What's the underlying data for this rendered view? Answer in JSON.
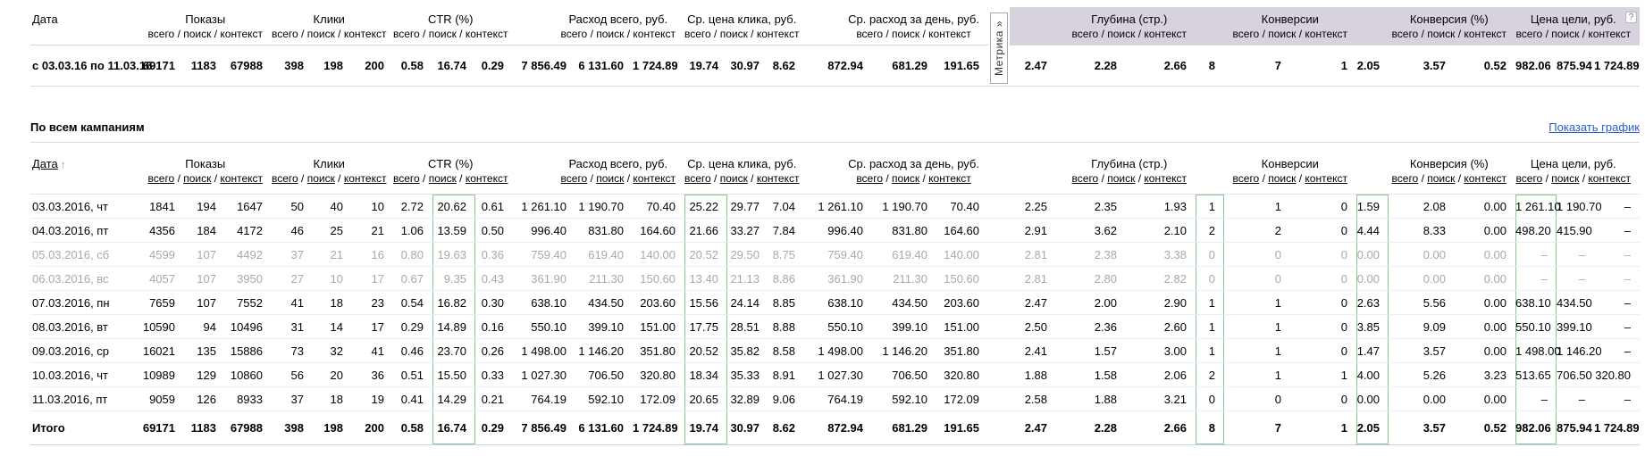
{
  "colors": {
    "metrika_band": "#d8d2de",
    "highlight_green": "#8bc78f",
    "link_blue": "#2a5ccc",
    "muted_text": "#a9a9a9"
  },
  "columns": {
    "date": "Дата",
    "groups": [
      "Показы",
      "Клики",
      "CTR (%)",
      "Расход всего, руб.",
      "Ср. цена клика, руб.",
      "Ср. расход за день, руб.",
      "Глубина (стр.)",
      "Конверсии",
      "Конверсия (%)",
      "Цена цели, руб."
    ],
    "sub_parts": [
      "всего",
      "поиск",
      "контекст"
    ],
    "sub_separator": " / "
  },
  "summary": {
    "metrika_tab": "Метрика",
    "metrika_chevron": "»",
    "help": "?",
    "row": {
      "label": "с 03.03.16 по 11.03.16",
      "values": [
        "69171",
        "1183",
        "67988",
        "398",
        "198",
        "200",
        "0.58",
        "16.74",
        "0.29",
        "7 856.49",
        "6 131.60",
        "1 724.89",
        "19.74",
        "30.97",
        "8.62",
        "872.94",
        "681.29",
        "191.65",
        "2.47",
        "2.28",
        "2.66",
        "8",
        "7",
        "1",
        "2.05",
        "3.57",
        "0.52",
        "982.06",
        "875.94",
        "1 724.89"
      ]
    }
  },
  "campaigns": {
    "title": "По всем кампаниям",
    "show_chart": "Показать график",
    "sort_arrow": "↑",
    "highlighted_columns": [
      7,
      12,
      21,
      24,
      27
    ],
    "rows": [
      {
        "date": "03.03.2016, чт",
        "muted": false,
        "values": [
          "1841",
          "194",
          "1647",
          "50",
          "40",
          "10",
          "2.72",
          "20.62",
          "0.61",
          "1 261.10",
          "1 190.70",
          "70.40",
          "25.22",
          "29.77",
          "7.04",
          "1 261.10",
          "1 190.70",
          "70.40",
          "2.25",
          "2.35",
          "1.93",
          "1",
          "1",
          "0",
          "1.59",
          "2.08",
          "0.00",
          "1 261.10",
          "1 190.70",
          "–"
        ]
      },
      {
        "date": "04.03.2016, пт",
        "muted": false,
        "values": [
          "4356",
          "184",
          "4172",
          "46",
          "25",
          "21",
          "1.06",
          "13.59",
          "0.50",
          "996.40",
          "831.80",
          "164.60",
          "21.66",
          "33.27",
          "7.84",
          "996.40",
          "831.80",
          "164.60",
          "2.91",
          "3.62",
          "2.10",
          "2",
          "2",
          "0",
          "4.44",
          "8.33",
          "0.00",
          "498.20",
          "415.90",
          "–"
        ]
      },
      {
        "date": "05.03.2016, сб",
        "muted": true,
        "values": [
          "4599",
          "107",
          "4492",
          "37",
          "21",
          "16",
          "0.80",
          "19.63",
          "0.36",
          "759.40",
          "619.40",
          "140.00",
          "20.52",
          "29.50",
          "8.75",
          "759.40",
          "619.40",
          "140.00",
          "2.81",
          "2.38",
          "3.38",
          "0",
          "0",
          "0",
          "0.00",
          "0.00",
          "0.00",
          "–",
          "–",
          "–"
        ]
      },
      {
        "date": "06.03.2016, вс",
        "muted": true,
        "values": [
          "4057",
          "107",
          "3950",
          "27",
          "10",
          "17",
          "0.67",
          "9.35",
          "0.43",
          "361.90",
          "211.30",
          "150.60",
          "13.40",
          "21.13",
          "8.86",
          "361.90",
          "211.30",
          "150.60",
          "2.81",
          "2.80",
          "2.82",
          "0",
          "0",
          "0",
          "0.00",
          "0.00",
          "0.00",
          "–",
          "–",
          "–"
        ]
      },
      {
        "date": "07.03.2016, пн",
        "muted": false,
        "values": [
          "7659",
          "107",
          "7552",
          "41",
          "18",
          "23",
          "0.54",
          "16.82",
          "0.30",
          "638.10",
          "434.50",
          "203.60",
          "15.56",
          "24.14",
          "8.85",
          "638.10",
          "434.50",
          "203.60",
          "2.47",
          "2.00",
          "2.90",
          "1",
          "1",
          "0",
          "2.63",
          "5.56",
          "0.00",
          "638.10",
          "434.50",
          "–"
        ]
      },
      {
        "date": "08.03.2016, вт",
        "muted": false,
        "values": [
          "10590",
          "94",
          "10496",
          "31",
          "14",
          "17",
          "0.29",
          "14.89",
          "0.16",
          "550.10",
          "399.10",
          "151.00",
          "17.75",
          "28.51",
          "8.88",
          "550.10",
          "399.10",
          "151.00",
          "2.50",
          "2.36",
          "2.60",
          "1",
          "1",
          "0",
          "3.85",
          "9.09",
          "0.00",
          "550.10",
          "399.10",
          "–"
        ]
      },
      {
        "date": "09.03.2016, ср",
        "muted": false,
        "values": [
          "16021",
          "135",
          "15886",
          "73",
          "32",
          "41",
          "0.46",
          "23.70",
          "0.26",
          "1 498.00",
          "1 146.20",
          "351.80",
          "20.52",
          "35.82",
          "8.58",
          "1 498.00",
          "1 146.20",
          "351.80",
          "2.41",
          "1.57",
          "3.00",
          "1",
          "1",
          "0",
          "1.47",
          "3.57",
          "0.00",
          "1 498.00",
          "1 146.20",
          "–"
        ]
      },
      {
        "date": "10.03.2016, чт",
        "muted": false,
        "values": [
          "10989",
          "129",
          "10860",
          "56",
          "20",
          "36",
          "0.51",
          "15.50",
          "0.33",
          "1 027.30",
          "706.50",
          "320.80",
          "18.34",
          "35.33",
          "8.91",
          "1 027.30",
          "706.50",
          "320.80",
          "1.88",
          "1.58",
          "2.06",
          "2",
          "1",
          "1",
          "4.00",
          "5.26",
          "3.23",
          "513.65",
          "706.50",
          "320.80"
        ]
      },
      {
        "date": "11.03.2016, пт",
        "muted": false,
        "values": [
          "9059",
          "126",
          "8933",
          "37",
          "18",
          "19",
          "0.41",
          "14.29",
          "0.21",
          "764.19",
          "592.10",
          "172.09",
          "20.65",
          "32.89",
          "9.06",
          "764.19",
          "592.10",
          "172.09",
          "2.58",
          "1.88",
          "3.21",
          "0",
          "0",
          "0",
          "0.00",
          "0.00",
          "0.00",
          "–",
          "–",
          "–"
        ]
      }
    ],
    "total": {
      "label": "Итого",
      "values": [
        "69171",
        "1183",
        "67988",
        "398",
        "198",
        "200",
        "0.58",
        "16.74",
        "0.29",
        "7 856.49",
        "6 131.60",
        "1 724.89",
        "19.74",
        "30.97",
        "8.62",
        "872.94",
        "681.29",
        "191.65",
        "2.47",
        "2.28",
        "2.66",
        "8",
        "7",
        "1",
        "2.05",
        "3.57",
        "0.52",
        "982.06",
        "875.94",
        "1 724.89"
      ]
    }
  }
}
